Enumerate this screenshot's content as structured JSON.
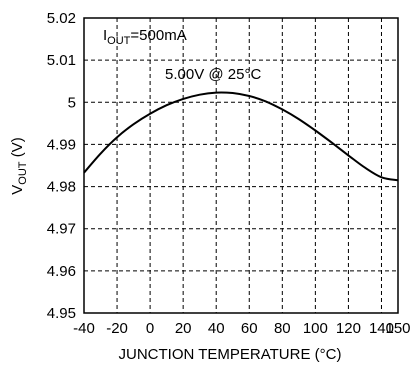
{
  "chart_data": {
    "type": "line",
    "xlabel": "JUNCTION TEMPERATURE  (°C)",
    "ylabel_main": "V",
    "ylabel_sub": "OUT",
    "ylabel_unit": " (V)",
    "xlim": [
      -40,
      150
    ],
    "ylim": [
      4.95,
      5.02
    ],
    "x_ticks": [
      -40,
      -20,
      0,
      20,
      40,
      60,
      80,
      100,
      120,
      140,
      150
    ],
    "x_tick_labels": [
      "-40",
      "-20",
      "0",
      "20",
      "40",
      "60",
      "80",
      "100",
      "120",
      "140",
      "150"
    ],
    "y_ticks": [
      4.95,
      4.96,
      4.97,
      4.98,
      4.99,
      5.0,
      5.01,
      5.02
    ],
    "y_tick_labels": [
      "4.95",
      "4.96",
      "4.97",
      "4.98",
      "4.99",
      "5",
      "5.01",
      "5.02"
    ],
    "grid": true,
    "series": [
      {
        "x": [
          -40,
          -30,
          -20,
          -10,
          0,
          10,
          20,
          30,
          40,
          50,
          60,
          70,
          80,
          90,
          100,
          110,
          120,
          130,
          140,
          150
        ],
        "y": [
          4.9833,
          4.9878,
          4.9917,
          4.9948,
          4.9973,
          4.9993,
          5.0008,
          5.0018,
          5.0023,
          5.0022,
          5.0015,
          5.0002,
          4.9983,
          4.996,
          4.9933,
          4.9904,
          4.9874,
          4.9845,
          4.9822,
          4.9815
        ]
      }
    ],
    "annotations": {
      "condition_main": "I",
      "condition_sub": "OUT",
      "condition_rest": "=500mA",
      "reference": "5.00V @ 25°C"
    }
  }
}
